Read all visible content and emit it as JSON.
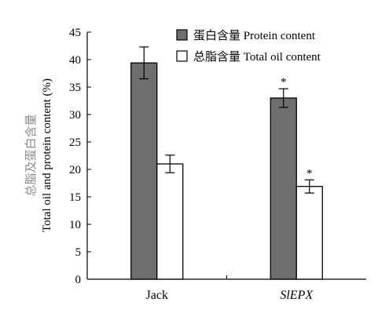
{
  "chart_data": {
    "type": "bar",
    "categories": [
      "Jack",
      "SlEPX"
    ],
    "category_styles": [
      "normal",
      "italic"
    ],
    "series": [
      {
        "name": "蛋白含量 Protein content",
        "values": [
          39.4,
          33.0
        ],
        "errors": [
          2.9,
          1.7
        ],
        "significance": [
          "",
          "*"
        ],
        "color": "#6e6e6e"
      },
      {
        "name": "总脂含量 Total oil content",
        "values": [
          21.0,
          16.9
        ],
        "errors": [
          1.6,
          1.2
        ],
        "significance": [
          "",
          "*"
        ],
        "color": "#ffffff"
      }
    ],
    "ylim": [
      0,
      45
    ],
    "yticks": [
      "0",
      "5",
      "10",
      "15",
      "20",
      "25",
      "30",
      "35",
      "40",
      "45"
    ],
    "ylabel_cn": "总脂及蛋白含量",
    "ylabel_en": "Total oil and protein content (%)",
    "title": "",
    "xlabel": "",
    "legend_position": "top-right",
    "grid": false
  }
}
